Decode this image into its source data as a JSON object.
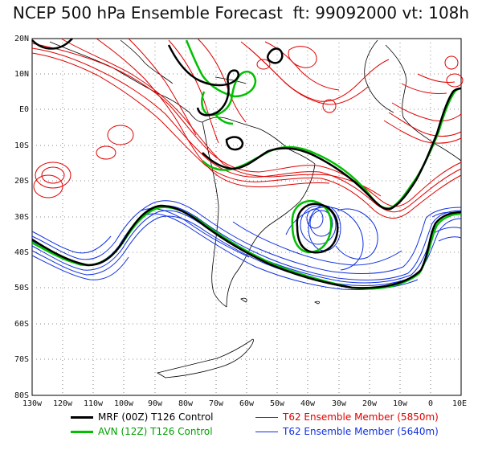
{
  "title": "NCEP 500 hPa Ensemble Forecast  ft: 99092000 vt: 108h",
  "lat_labels": [
    "20N",
    "10N",
    "E0",
    "10S",
    "20S",
    "30S",
    "40S",
    "50S",
    "60S",
    "70S",
    "80S"
  ],
  "lon_labels": [
    "130w",
    "120w",
    "110w",
    "100w",
    "90w",
    "80w",
    "70w",
    "60w",
    "50w",
    "40w",
    "30w",
    "20w",
    "10w",
    "0",
    "10E"
  ],
  "legend": [
    {
      "label": "MRF (00Z) T126 Control",
      "color": "#000000",
      "width": 3
    },
    {
      "label": "AVN (12Z) T126 Control",
      "color": "#00c000",
      "width": 3
    },
    {
      "label": "T62 Ensemble Member (5850m)",
      "color": "#e00000",
      "width": 1
    },
    {
      "label": "T62 Ensemble Member (5640m)",
      "color": "#1030e0",
      "width": 1
    }
  ],
  "colors": {
    "mrf": "#000000",
    "avn": "#00c000",
    "ens_5850": "#e00000",
    "ens_5640": "#1030e0",
    "grid": "#888888",
    "coast": "#000000"
  }
}
